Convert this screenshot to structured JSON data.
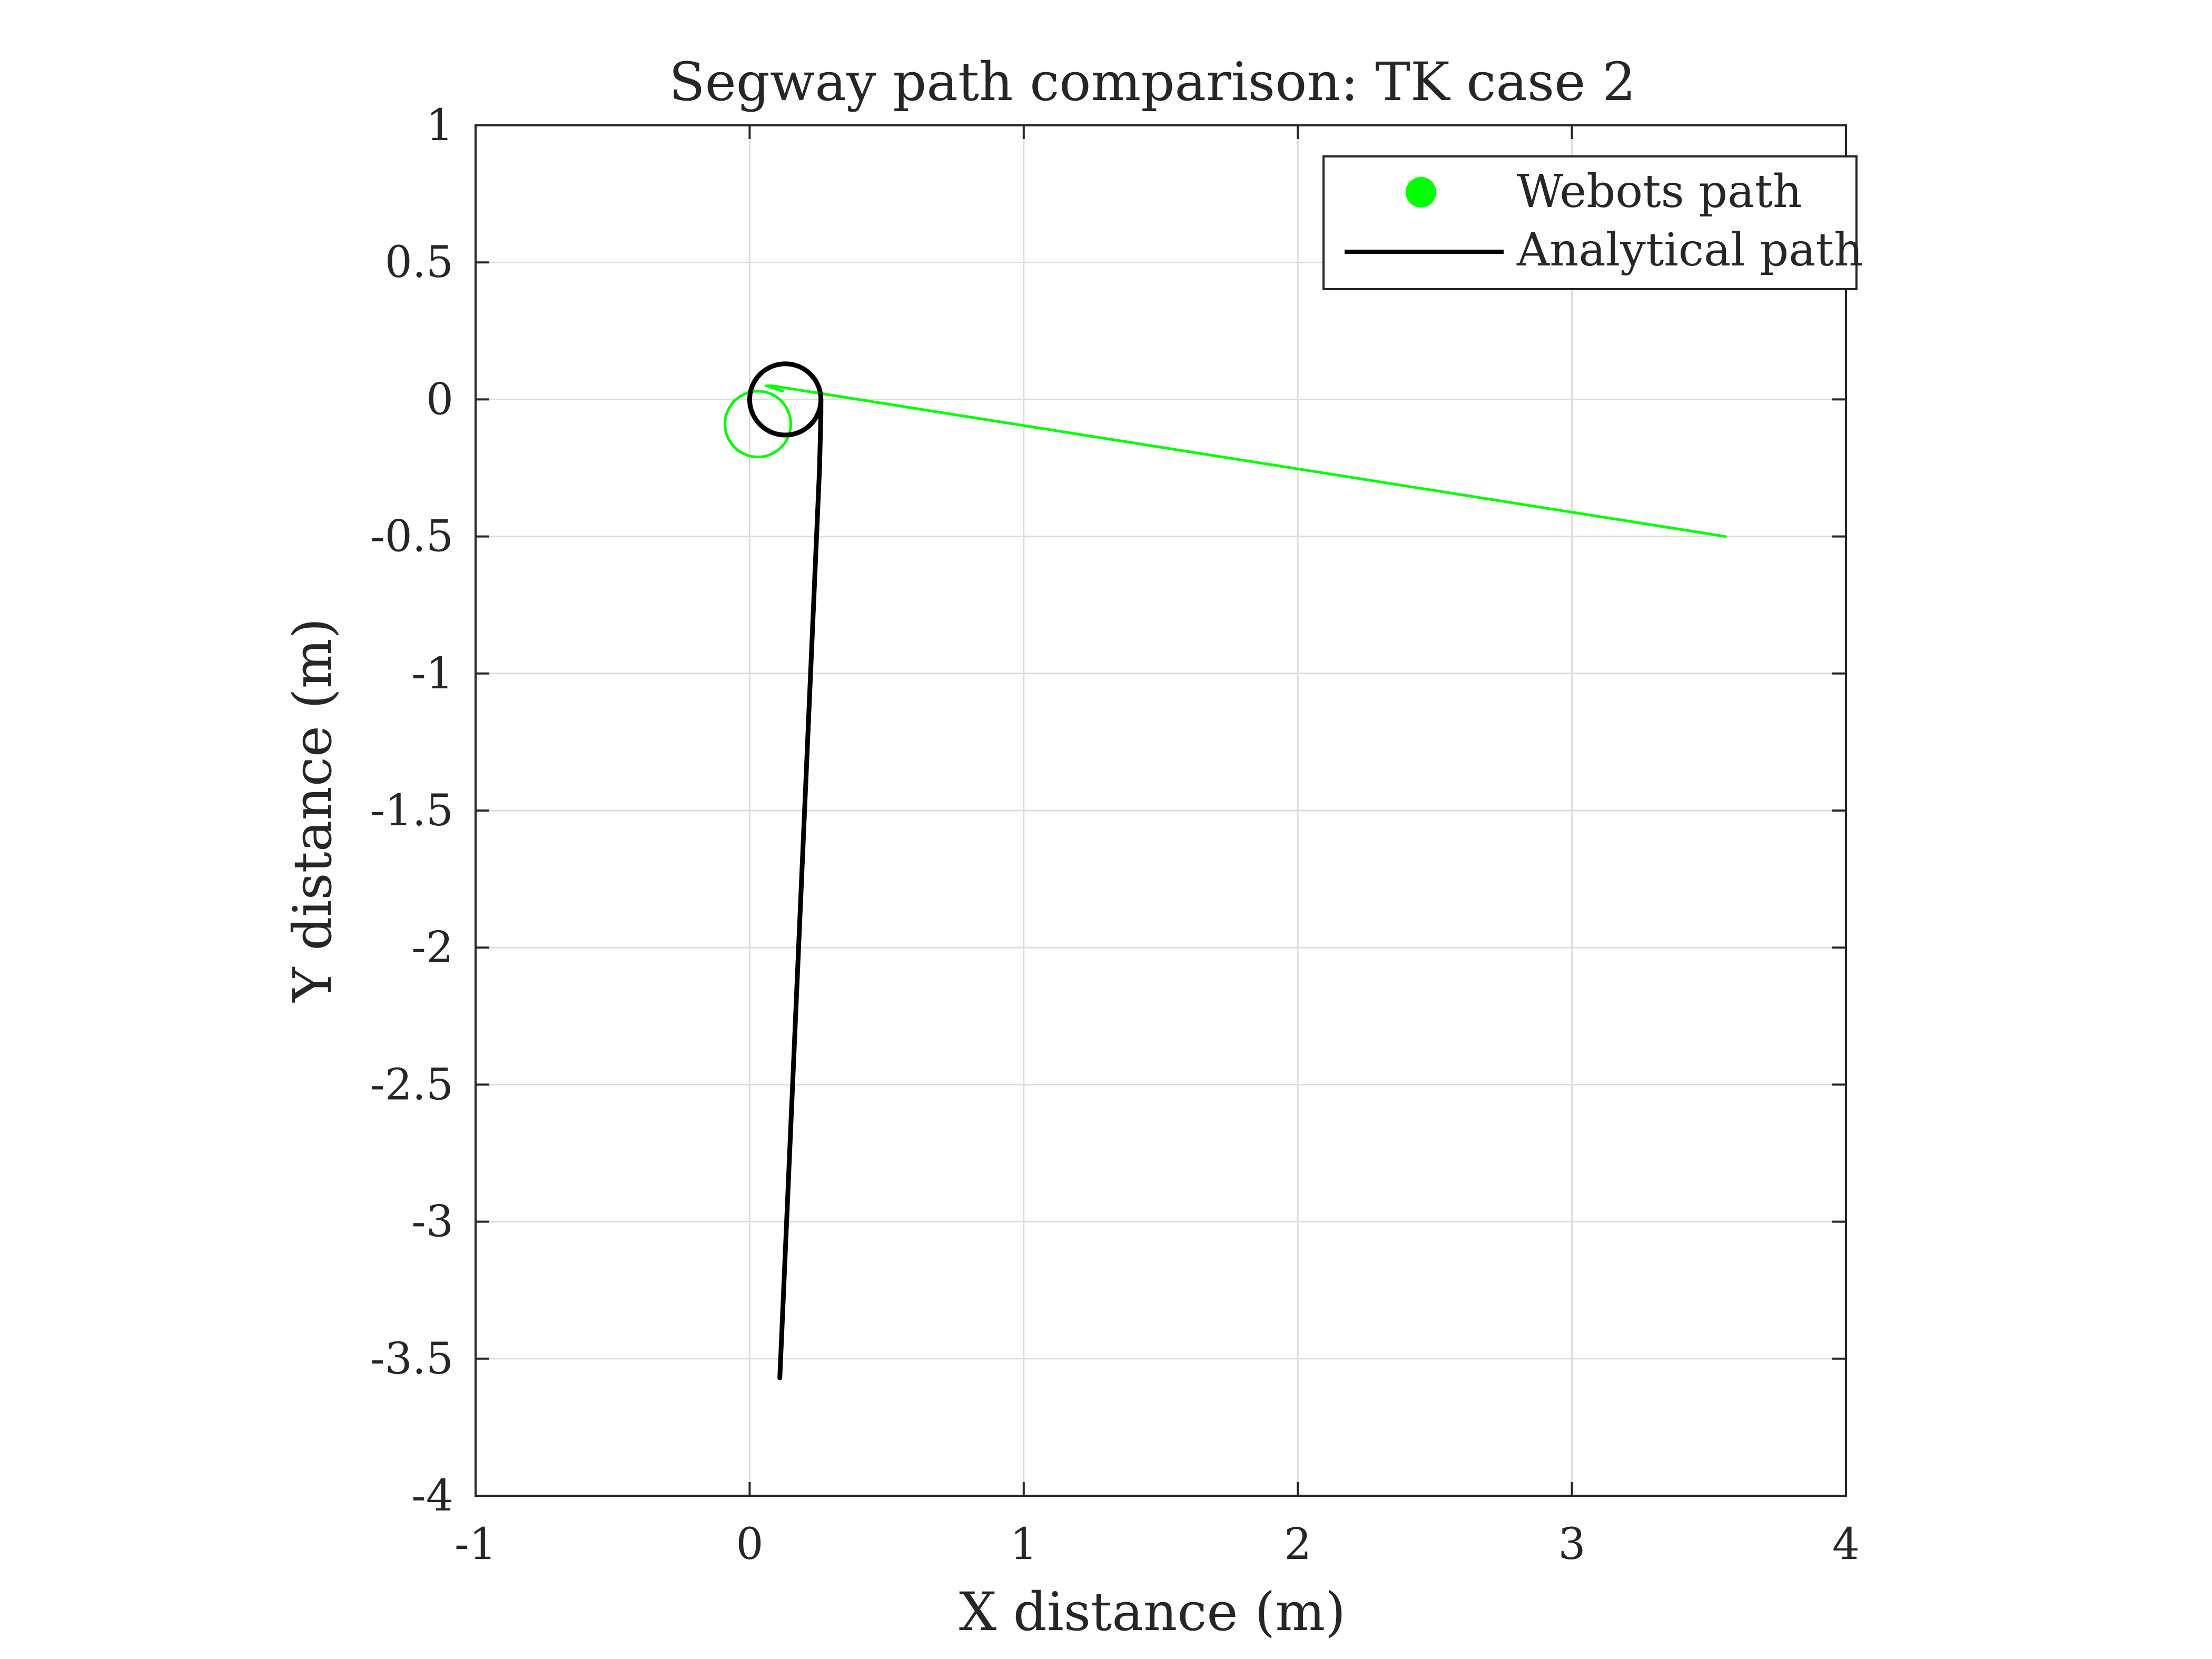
{
  "chart_data": {
    "type": "line",
    "title": "Segway path comparison: TK case 2",
    "xlabel": "X distance (m)",
    "ylabel": "Y distance (m)",
    "xlim": [
      -1,
      4
    ],
    "ylim": [
      -4,
      1
    ],
    "xticks": [
      -1,
      0,
      1,
      2,
      3,
      4
    ],
    "xtick_labels": [
      "-1",
      "0",
      "1",
      "2",
      "3",
      "4"
    ],
    "yticks": [
      1,
      0.5,
      0,
      -0.5,
      -1,
      -1.5,
      -2,
      -2.5,
      -3,
      -3.5,
      -4
    ],
    "ytick_labels": [
      "1",
      "0.5",
      "0",
      "-0.5",
      "-1",
      "-1.5",
      "-2",
      "-2.5",
      "-3",
      "-3.5",
      "-4"
    ],
    "grid": true,
    "legend_position": "top-right",
    "series": [
      {
        "name": "Webots path",
        "color": "#00ff00",
        "legend_marker": "filled-circle",
        "loop": {
          "center": [
            0.03,
            -0.09
          ],
          "radius": 0.12
        },
        "x": [
          0.12,
          0.06,
          0.08,
          3.56
        ],
        "y": [
          0.03,
          0.05,
          0.05,
          -0.5
        ]
      },
      {
        "name": "Analytical path",
        "color": "#000000",
        "legend_marker": "line",
        "loop": {
          "center": [
            0.13,
            0.0
          ],
          "radius": 0.13
        },
        "x": [
          0.26,
          0.26,
          0.255,
          0.11
        ],
        "y": [
          0.0,
          -0.05,
          -0.25,
          -3.57
        ]
      }
    ]
  }
}
